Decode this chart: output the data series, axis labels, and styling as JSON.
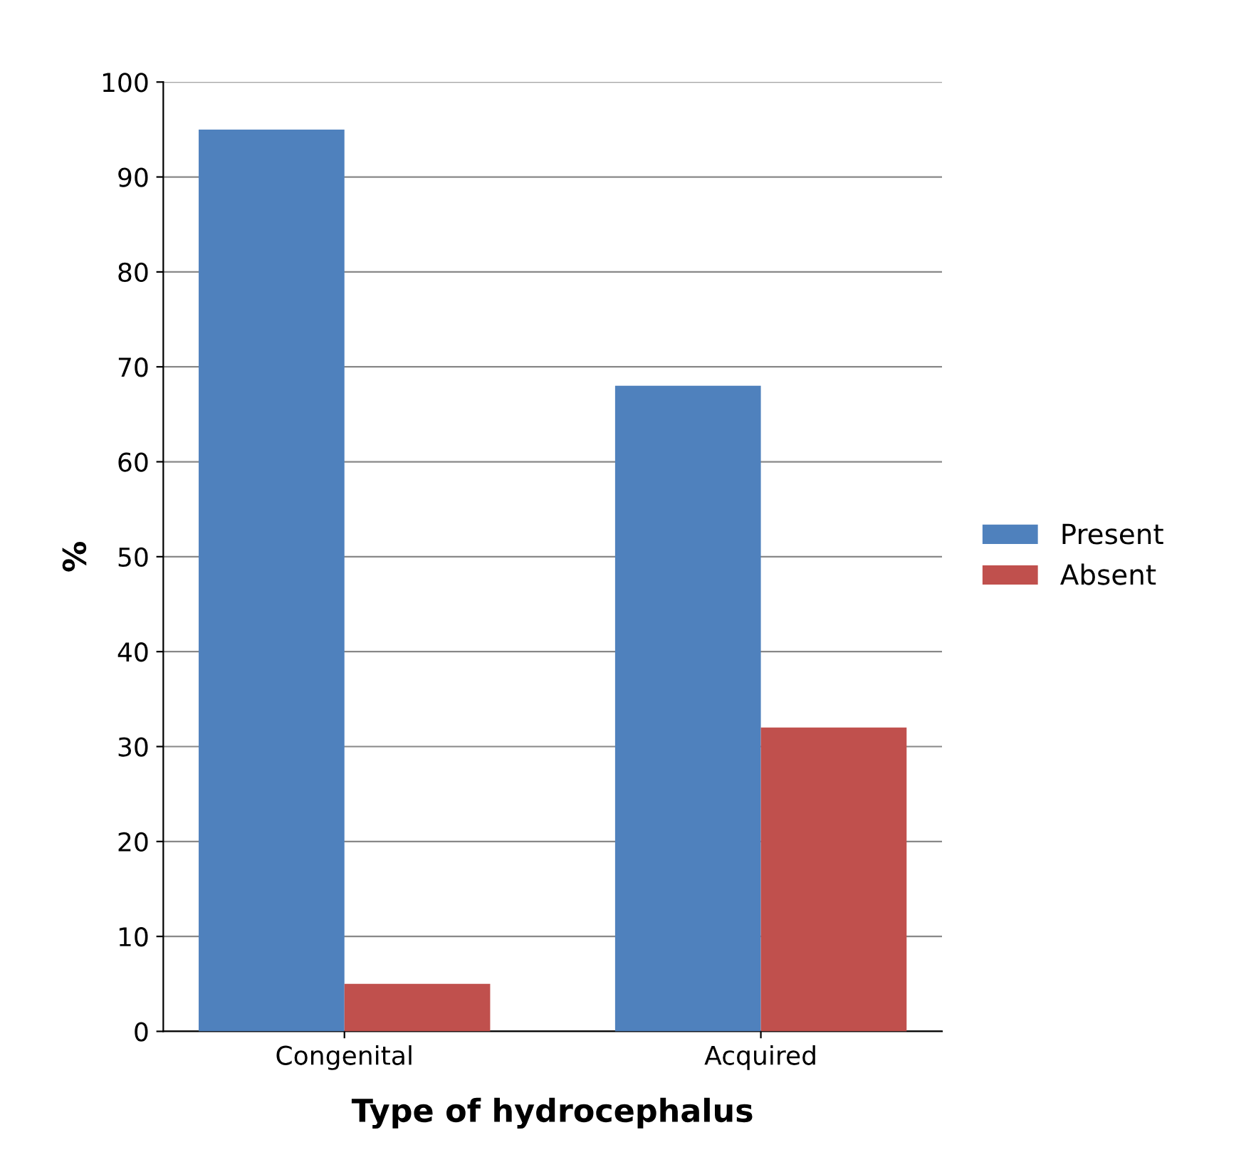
{
  "chart_data": {
    "type": "bar",
    "xlabel": "Type of hydrocephalus",
    "ylabel": "%",
    "categories": [
      "Congenital",
      "Acquired"
    ],
    "series": [
      {
        "name": "Present",
        "color": "#4f81bd",
        "values": [
          95,
          68
        ]
      },
      {
        "name": "Absent",
        "color": "#c0504d",
        "values": [
          5,
          32
        ]
      }
    ],
    "ylim": [
      0,
      100
    ],
    "yticks": [
      0,
      10,
      20,
      30,
      40,
      50,
      60,
      70,
      80,
      90,
      100
    ],
    "grid": "y",
    "legend": "right"
  }
}
